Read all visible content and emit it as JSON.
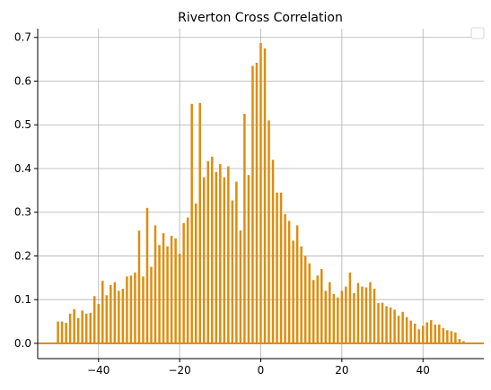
{
  "chart_data": {
    "type": "bar",
    "title": "Riverton Cross Correlation",
    "xlabel": "",
    "ylabel": "",
    "xlim": [
      -55,
      55
    ],
    "ylim": [
      -0.035,
      0.72
    ],
    "xticks": [
      -40,
      -20,
      0,
      20,
      40
    ],
    "xtick_labels": [
      "−40",
      "−20",
      "0",
      "20",
      "40"
    ],
    "yticks": [
      0.0,
      0.1,
      0.2,
      0.3,
      0.4,
      0.5,
      0.6,
      0.7
    ],
    "ytick_labels": [
      "0.0",
      "0.1",
      "0.2",
      "0.3",
      "0.4",
      "0.5",
      "0.6",
      "0.7"
    ],
    "grid": true,
    "legend": "top-right",
    "bar_color": "#e08c0b",
    "x": [
      -50,
      -49,
      -48,
      -47,
      -46,
      -45,
      -44,
      -43,
      -42,
      -41,
      -40,
      -39,
      -38,
      -37,
      -36,
      -35,
      -34,
      -33,
      -32,
      -31,
      -30,
      -29,
      -28,
      -27,
      -26,
      -25,
      -24,
      -23,
      -22,
      -21,
      -20,
      -19,
      -18,
      -17,
      -16,
      -15,
      -14,
      -13,
      -12,
      -11,
      -10,
      -9,
      -8,
      -7,
      -6,
      -5,
      -4,
      -3,
      -2,
      -1,
      0,
      1,
      2,
      3,
      4,
      5,
      6,
      7,
      8,
      9,
      10,
      11,
      12,
      13,
      14,
      15,
      16,
      17,
      18,
      19,
      20,
      21,
      22,
      23,
      24,
      25,
      26,
      27,
      28,
      29,
      30,
      31,
      32,
      33,
      34,
      35,
      36,
      37,
      38,
      39,
      40,
      41,
      42,
      43,
      44,
      45,
      46,
      47,
      48,
      49,
      50
    ],
    "values": [
      0.05,
      0.05,
      0.047,
      0.068,
      0.078,
      0.058,
      0.075,
      0.068,
      0.07,
      0.108,
      0.09,
      0.143,
      0.11,
      0.133,
      0.14,
      0.12,
      0.125,
      0.153,
      0.155,
      0.162,
      0.258,
      0.153,
      0.31,
      0.175,
      0.27,
      0.225,
      0.252,
      0.222,
      0.246,
      0.24,
      0.205,
      0.275,
      0.288,
      0.548,
      0.32,
      0.55,
      0.38,
      0.417,
      0.427,
      0.392,
      0.41,
      0.38,
      0.405,
      0.327,
      0.37,
      0.258,
      0.525,
      0.385,
      0.635,
      0.642,
      0.687,
      0.675,
      0.51,
      0.42,
      0.345,
      0.345,
      0.296,
      0.28,
      0.235,
      0.27,
      0.222,
      0.2,
      0.183,
      0.145,
      0.155,
      0.17,
      0.12,
      0.14,
      0.113,
      0.105,
      0.12,
      0.13,
      0.162,
      0.115,
      0.138,
      0.13,
      0.128,
      0.14,
      0.125,
      0.092,
      0.093,
      0.085,
      0.082,
      0.077,
      0.063,
      0.072,
      0.06,
      0.052,
      0.045,
      0.032,
      0.04,
      0.048,
      0.053,
      0.043,
      0.043,
      0.035,
      0.03,
      0.028,
      0.025,
      0.01,
      0.005
    ]
  }
}
